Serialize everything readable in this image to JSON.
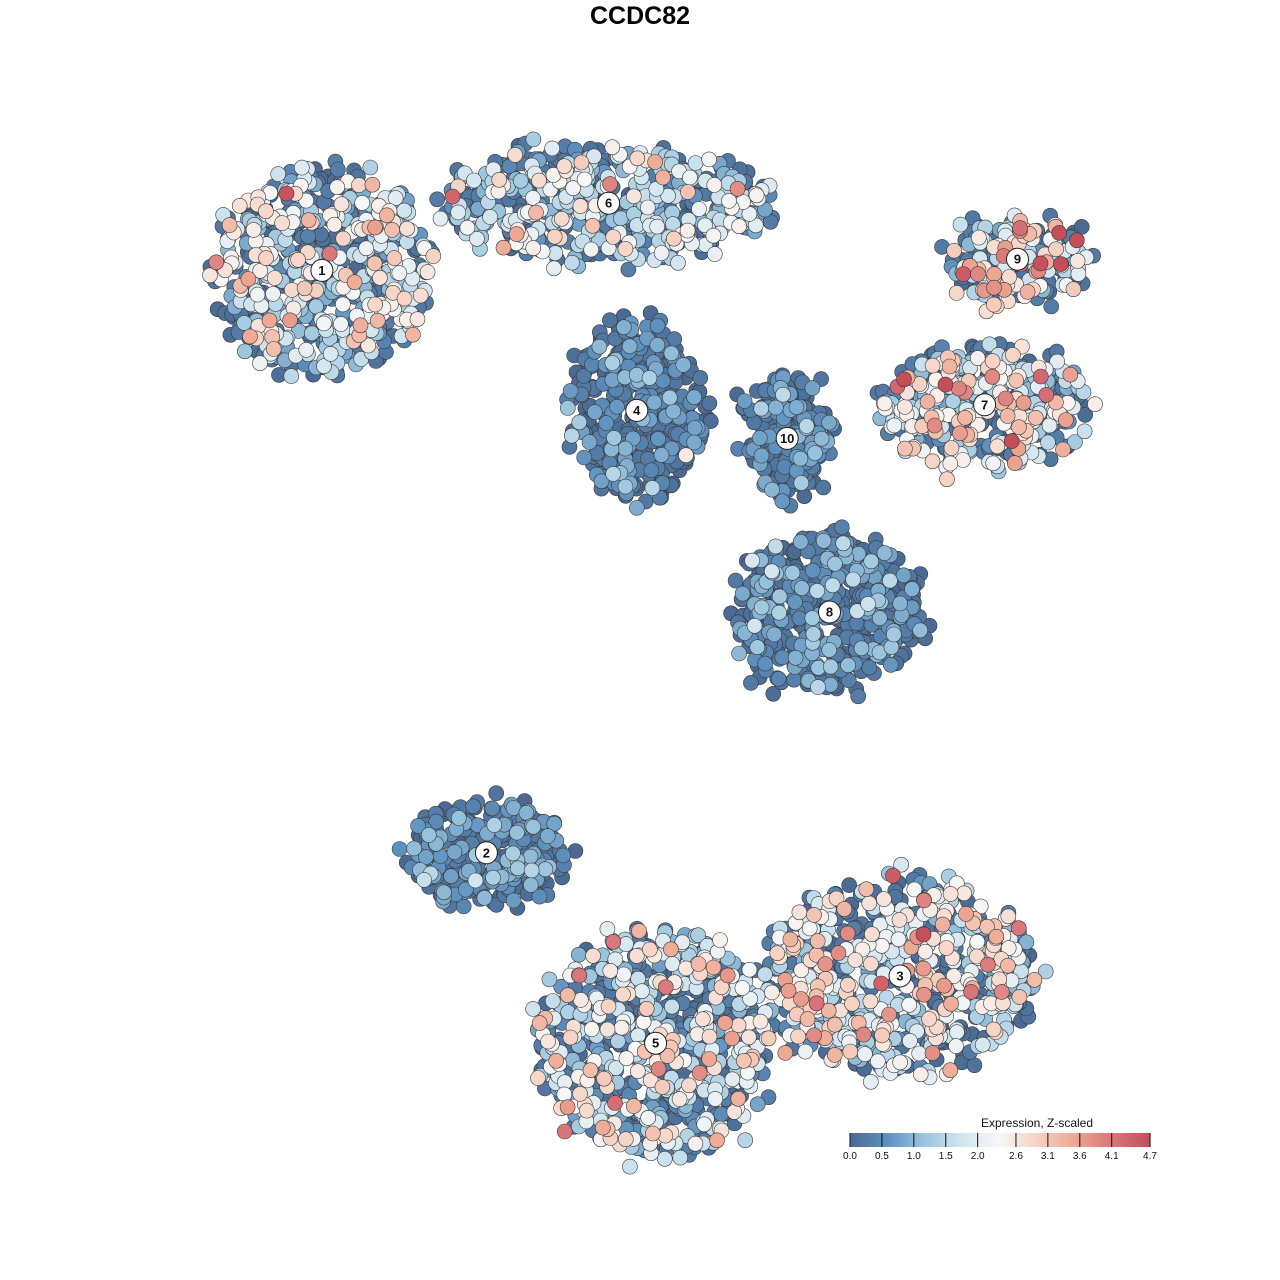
{
  "chart_data": {
    "type": "scatter",
    "title": "CCDC82",
    "xlabel": "",
    "ylabel": "",
    "grid": false,
    "legend": {
      "title": "Expression, Z-scaled",
      "placement": "bottom-right",
      "ticks": [
        "0.0",
        "0.5",
        "1.0",
        "1.5",
        "2.0",
        "2.6",
        "3.1",
        "3.6",
        "4.1",
        "4.7"
      ],
      "range": [
        0.0,
        4.7
      ],
      "colors": [
        "#4a6a93",
        "#5f91bf",
        "#9cc6de",
        "#d2e5f0",
        "#f7f7f7",
        "#f6d2c3",
        "#eda792",
        "#d7757a",
        "#c44d5a"
      ]
    },
    "clusters": [
      {
        "label": "1",
        "x": -0.73,
        "y": 0.66,
        "rx": 0.23,
        "ry": 0.18,
        "mean_expr": 1.6,
        "spread": 0.9
      },
      {
        "label": "2",
        "x": -0.38,
        "y": -0.38,
        "rx": 0.17,
        "ry": 0.09,
        "mean_expr": 0.35,
        "spread": 0.6
      },
      {
        "label": "3",
        "x": 0.5,
        "y": -0.6,
        "rx": 0.28,
        "ry": 0.17,
        "mean_expr": 1.9,
        "spread": 1.0
      },
      {
        "label": "4",
        "x": -0.06,
        "y": 0.41,
        "rx": 0.14,
        "ry": 0.15,
        "mean_expr": 0.25,
        "spread": 0.5
      },
      {
        "label": "5",
        "x": -0.02,
        "y": -0.72,
        "rx": 0.25,
        "ry": 0.2,
        "mean_expr": 1.7,
        "spread": 1.0
      },
      {
        "label": "6",
        "x": -0.12,
        "y": 0.78,
        "rx": 0.35,
        "ry": 0.1,
        "mean_expr": 1.4,
        "spread": 0.9
      },
      {
        "label": "7",
        "x": 0.68,
        "y": 0.42,
        "rx": 0.22,
        "ry": 0.1,
        "mean_expr": 1.8,
        "spread": 1.1
      },
      {
        "label": "8",
        "x": 0.35,
        "y": 0.05,
        "rx": 0.2,
        "ry": 0.14,
        "mean_expr": 0.4,
        "spread": 0.6
      },
      {
        "label": "9",
        "x": 0.75,
        "y": 0.68,
        "rx": 0.14,
        "ry": 0.07,
        "mean_expr": 2.0,
        "spread": 1.2
      },
      {
        "label": "10",
        "x": 0.26,
        "y": 0.36,
        "rx": 0.08,
        "ry": 0.1,
        "mean_expr": 0.3,
        "spread": 0.5
      }
    ]
  }
}
